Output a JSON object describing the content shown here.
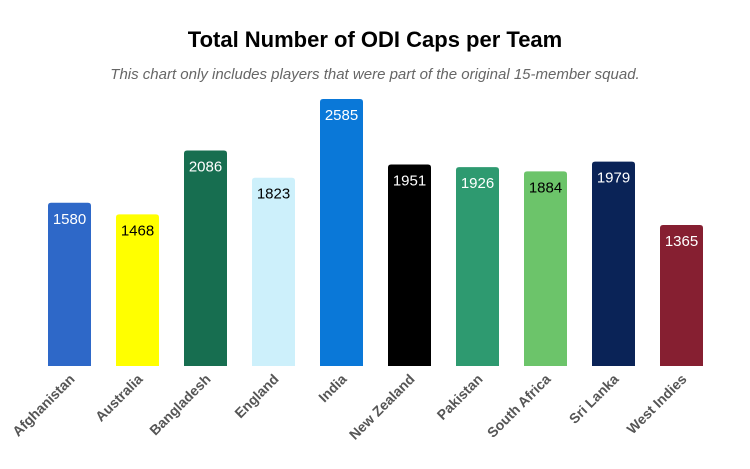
{
  "chart_data": {
    "type": "bar",
    "title": "Total Number of ODI Caps per Team",
    "subtitle": "This chart only includes players that were part of the original 15-member squad.",
    "xlabel": "",
    "ylabel": "",
    "ylim": [
      0,
      2585
    ],
    "grid": false,
    "categories": [
      "Afghanistan",
      "Australia",
      "Bangladesh",
      "England",
      "India",
      "New Zealand",
      "Pakistan",
      "South Africa",
      "Sri Lanka",
      "West Indies"
    ],
    "values": [
      1580,
      1468,
      2086,
      1823,
      2585,
      1951,
      1926,
      1884,
      1979,
      1365
    ],
    "colors": [
      "#2e68c8",
      "#ffff00",
      "#176e50",
      "#cdf0fb",
      "#0a78d8",
      "#000000",
      "#2e9a70",
      "#6cc46a",
      "#0a2357",
      "#861f31"
    ],
    "label_colors": [
      "#ffffff",
      "#000000",
      "#ffffff",
      "#000000",
      "#ffffff",
      "#ffffff",
      "#ffffff",
      "#000000",
      "#ffffff",
      "#ffffff"
    ]
  }
}
